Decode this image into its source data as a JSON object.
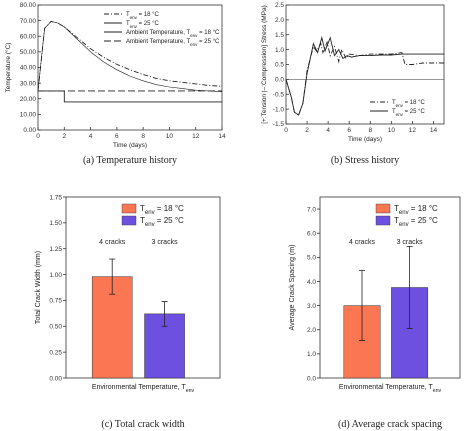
{
  "chart_data": [
    {
      "type": "line",
      "caption": "(a)  Temperature history",
      "xlabel": "Time (days)",
      "ylabel": "Temperature (°C)",
      "xlim": [
        0,
        14
      ],
      "ylim": [
        0,
        80
      ],
      "xticks": [
        "0",
        "2",
        "4",
        "6",
        "8",
        "10",
        "12",
        "14"
      ],
      "yticks": [
        "0.00",
        "10.00",
        "20.00",
        "30.00",
        "40.00",
        "50.00",
        "60.00",
        "70.00",
        "80.00"
      ],
      "legend_position": "top-right",
      "series": [
        {
          "name": "T env = 18 °C",
          "style": "dash-dot",
          "x": [
            0,
            0.5,
            1,
            1.5,
            2,
            3,
            4,
            5,
            6,
            7,
            8,
            9,
            10,
            11,
            12,
            13,
            14
          ],
          "y": [
            25,
            65,
            69.5,
            68.5,
            66,
            59,
            52,
            46.5,
            42,
            38.5,
            35.5,
            33,
            31.5,
            30.5,
            29.5,
            28.5,
            28
          ]
        },
        {
          "name": "T env = 25 °C",
          "style": "solid-thin",
          "x": [
            0,
            0.5,
            1,
            1.5,
            2,
            3,
            4,
            5,
            6,
            7,
            8,
            9,
            10,
            11,
            12,
            13,
            14
          ],
          "y": [
            25,
            65,
            69.5,
            68.5,
            66,
            58,
            50,
            43.5,
            38.5,
            34.5,
            31.5,
            29,
            27.5,
            26.5,
            25.5,
            25,
            24.5
          ]
        },
        {
          "name": "Ambient Temperature, T env = 18 °C",
          "style": "solid",
          "x": [
            0,
            2,
            2,
            14
          ],
          "y": [
            25,
            25,
            18,
            18
          ]
        },
        {
          "name": "Ambient Temperature, T env = 25 °C",
          "style": "long-dash",
          "x": [
            0,
            14
          ],
          "y": [
            25,
            25
          ]
        }
      ]
    },
    {
      "type": "line",
      "caption": "(b)    Stress history",
      "xlabel": "Time (days)",
      "ylabel": "[+:Tension |–:Compression] Stress (MPa)",
      "xlim": [
        0,
        15
      ],
      "ylim": [
        -1.5,
        2.5
      ],
      "xticks": [
        "0",
        "2",
        "4",
        "6",
        "8",
        "10",
        "12",
        "14"
      ],
      "yticks": [
        "-1.5",
        "-1.0",
        "-0.5",
        "0.0",
        "0.5",
        "1.0",
        "1.5",
        "2.0",
        "2.5"
      ],
      "legend_position": "bottom-right",
      "series": [
        {
          "name": "T env = 18 °C",
          "style": "dash-dot",
          "x": [
            0,
            0.5,
            0.8,
            1.2,
            1.6,
            2,
            2.6,
            2.9,
            3.3,
            3.5,
            3.9,
            4.2,
            4.6,
            5,
            5.3,
            5.7,
            6,
            7,
            8,
            9,
            10,
            11,
            11.3,
            12,
            13,
            15
          ],
          "y": [
            0,
            -0.6,
            -1.1,
            -1.2,
            -0.8,
            0.3,
            1.1,
            0.95,
            1.2,
            0.9,
            1.25,
            0.8,
            1.1,
            0.6,
            1.0,
            0.7,
            0.85,
            0.8,
            0.85,
            0.85,
            0.85,
            0.9,
            0.5,
            0.5,
            0.55,
            0.55
          ]
        },
        {
          "name": "T env = 25 °C",
          "style": "solid",
          "x": [
            0,
            0.5,
            0.8,
            1.2,
            1.6,
            2,
            2.6,
            3,
            3.4,
            3.7,
            4.2,
            4.6,
            5,
            5.4,
            5.8,
            6.2,
            7,
            8,
            9,
            10,
            11,
            12,
            13,
            15
          ],
          "y": [
            0,
            -0.6,
            -1.1,
            -1.2,
            -0.8,
            0.2,
            1.2,
            0.9,
            1.4,
            0.95,
            1.4,
            0.8,
            1.0,
            0.7,
            0.8,
            0.75,
            0.8,
            0.8,
            0.82,
            0.82,
            0.85,
            0.85,
            0.85,
            0.85
          ]
        }
      ]
    },
    {
      "type": "bar",
      "caption": "(c) Total crack width",
      "xlabel": "Environmental Temperature, T env",
      "ylabel": "Total Crack Width (mm)",
      "ylim": [
        0,
        1.75
      ],
      "yticks": [
        "0.00",
        "0.25",
        "0.50",
        "0.75",
        "1.00",
        "1.25",
        "1.50",
        "1.75"
      ],
      "legend_position": "top-left",
      "series": [
        {
          "name": "T env = 18 °C",
          "color": "#fb7753",
          "value": 0.98,
          "error": 0.17,
          "annotation": "4 cracks"
        },
        {
          "name": "T env = 25 °C",
          "color": "#6e50e0",
          "value": 0.62,
          "error": 0.12,
          "annotation": "3 cracks"
        }
      ]
    },
    {
      "type": "bar",
      "caption": "(d) Average crack spacing",
      "xlabel": "Environmental Temperature, T env",
      "ylabel": "Average Crack Spacing (m)",
      "ylim": [
        0,
        7.5
      ],
      "yticks": [
        "0.0",
        "1.0",
        "2.0",
        "3.0",
        "4.0",
        "5.0",
        "6.0",
        "7.0"
      ],
      "legend_position": "top-left",
      "series": [
        {
          "name": "T env = 18 °C",
          "color": "#fb7753",
          "value": 3.0,
          "error": 1.45,
          "annotation": "4 cracks"
        },
        {
          "name": "T env = 25 °C",
          "color": "#6e50e0",
          "value": 3.75,
          "error": 1.7,
          "annotation": "3 cracks"
        }
      ]
    }
  ]
}
